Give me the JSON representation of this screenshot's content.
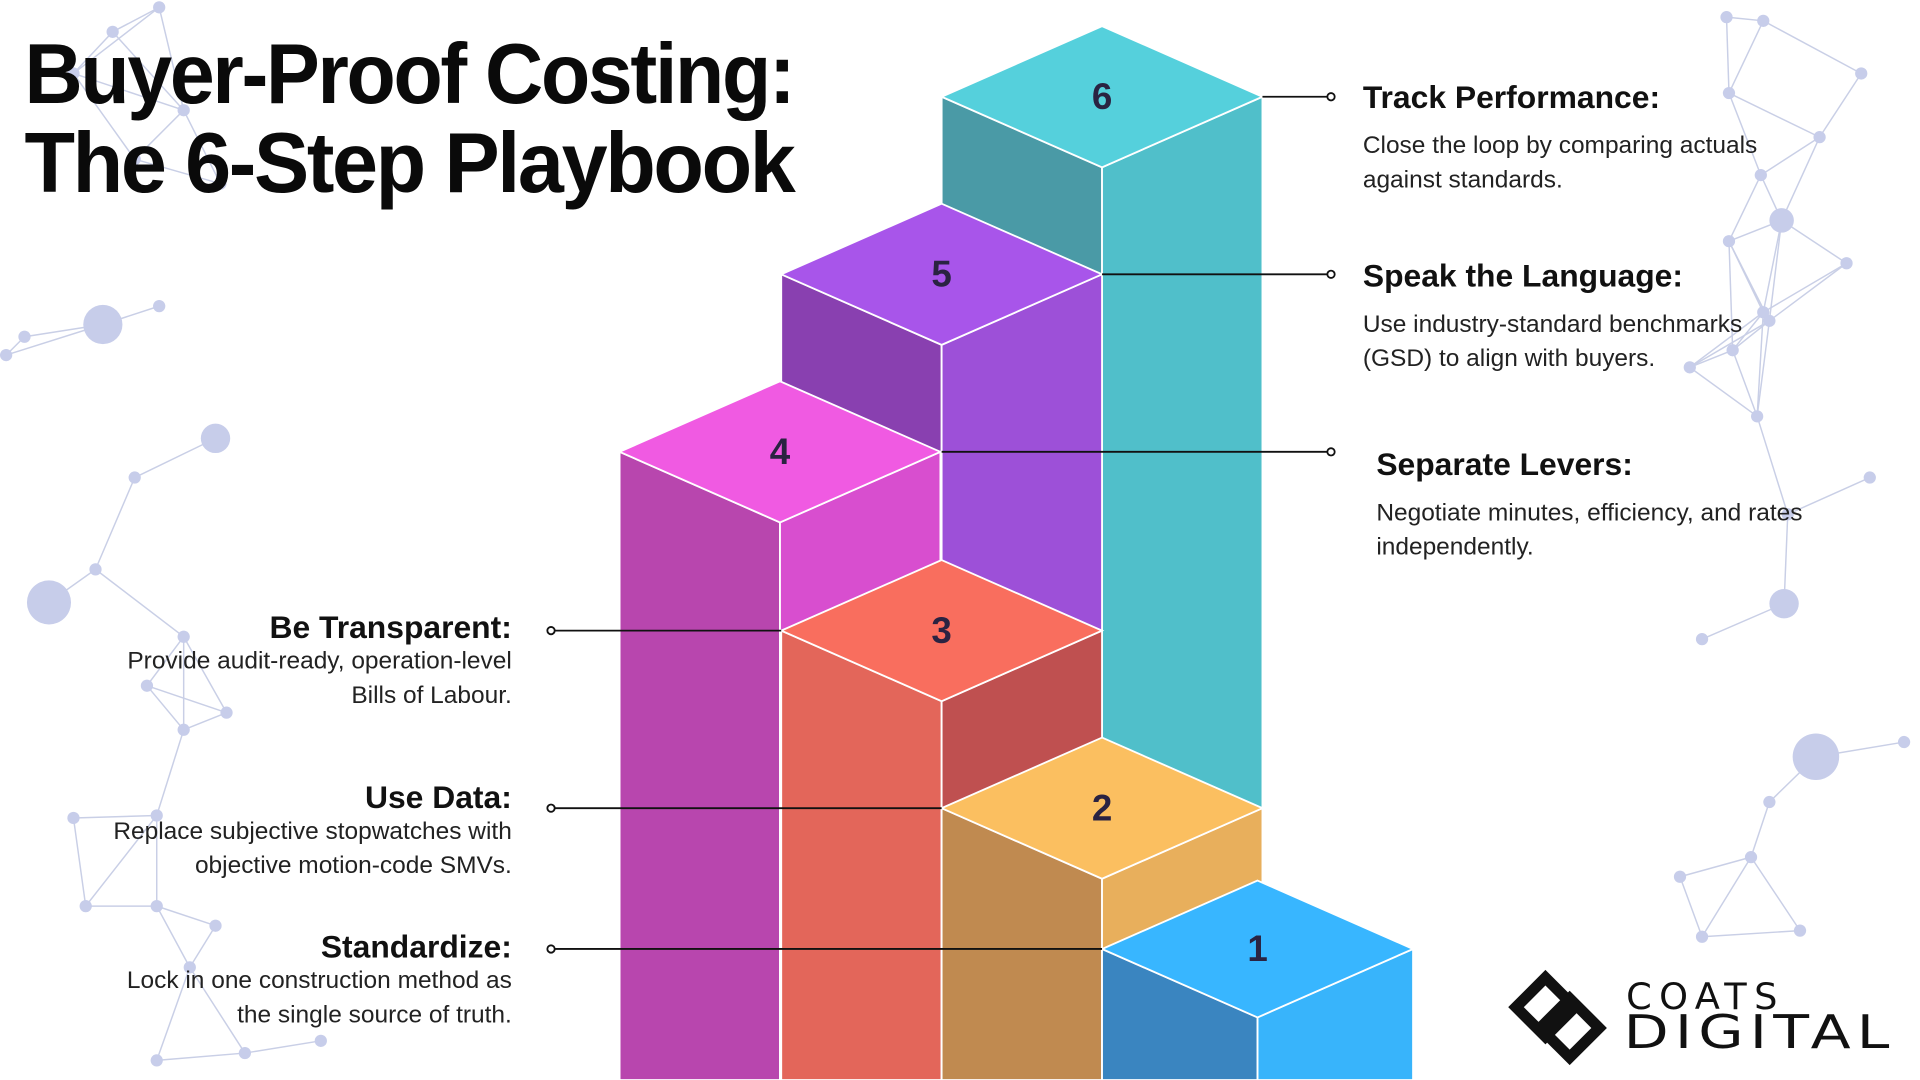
{
  "title": {
    "lines": [
      "Buyer-Proof Costing:",
      "The 6-Step Playbook"
    ]
  },
  "steps": [
    {
      "number": 1,
      "heading": "Standardize:",
      "description": [
        "Lock in one construction method as",
        "the single source of truth."
      ]
    },
    {
      "number": 2,
      "heading": "Use Data:",
      "description": [
        "Replace subjective stopwatches with",
        "objective motion-code SMVs."
      ]
    },
    {
      "number": 3,
      "heading": "Be Transparent:",
      "description": [
        "Provide audit-ready, operation-level",
        "Bills of Labour."
      ]
    },
    {
      "number": 4,
      "heading": "Separate Levers:",
      "description": [
        "Negotiate minutes, efficiency, and rates",
        "independently."
      ]
    },
    {
      "number": 5,
      "heading": "Speak the Language:",
      "description": [
        "Use industry-standard benchmarks",
        "(GSD) to align with buyers."
      ]
    },
    {
      "number": 6,
      "heading": "Track Performance:",
      "description": [
        "Close the loop by comparing actuals",
        "against standards."
      ]
    }
  ],
  "logo": {
    "top": "COATS",
    "bottom": "DIGITAL"
  }
}
